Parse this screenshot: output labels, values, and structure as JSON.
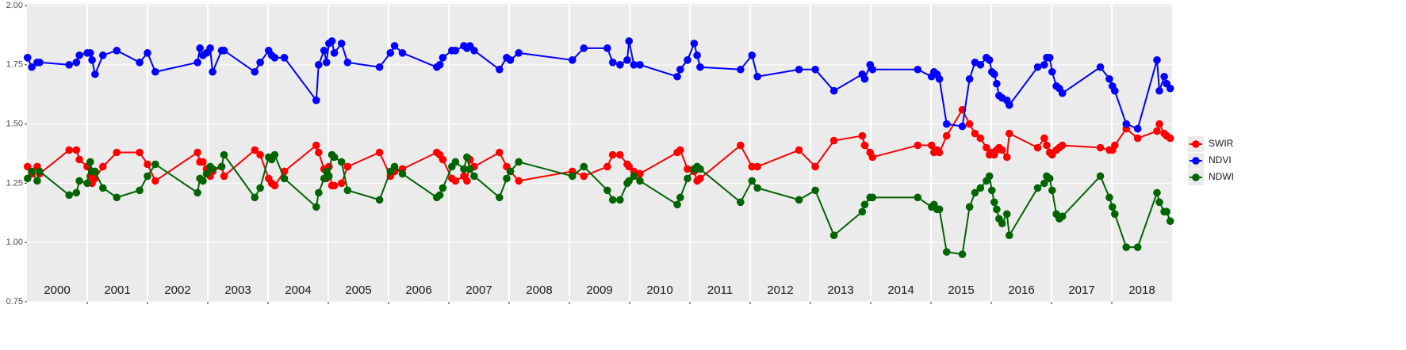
{
  "chart_data": {
    "type": "line",
    "x": [
      2000.01,
      2000.08,
      2000.17,
      2000.21,
      2000.7,
      2000.82,
      2000.87,
      2001.0,
      2001.05,
      2001.08,
      2001.13,
      2001.26,
      2001.49,
      2001.87,
      2002.0,
      2002.13,
      2002.83,
      2002.87,
      2002.92,
      2002.98,
      2003.04,
      2003.08,
      2003.23,
      2003.27,
      2003.78,
      2003.87,
      2004.01,
      2004.06,
      2004.11,
      2004.27,
      2004.8,
      2004.84,
      2004.93,
      2004.97,
      2005.01,
      2005.06,
      2005.1,
      2005.22,
      2005.32,
      2005.85,
      2006.03,
      2006.1,
      2006.23,
      2006.8,
      2006.85,
      2006.9,
      2007.05,
      2007.11,
      2007.25,
      2007.3,
      2007.35,
      2007.42,
      2007.84,
      2007.96,
      2008.02,
      2008.16,
      2009.05,
      2009.24,
      2009.63,
      2009.72,
      2009.84,
      2009.96,
      2009.99,
      2010.07,
      2010.17,
      2010.79,
      2010.84,
      2010.96,
      2011.07,
      2011.12,
      2011.17,
      2011.84,
      2012.03,
      2012.12,
      2012.81,
      2013.08,
      2013.39,
      2013.86,
      2013.9,
      2013.99,
      2014.03,
      2014.78,
      2015.01,
      2015.05,
      2015.1,
      2015.14,
      2015.26,
      2015.52,
      2015.64,
      2015.73,
      2015.82,
      2015.92,
      2015.97,
      2016.01,
      2016.05,
      2016.09,
      2016.13,
      2016.18,
      2016.26,
      2016.3,
      2016.77,
      2016.88,
      2016.92,
      2016.97,
      2017.01,
      2017.08,
      2017.13,
      2017.18,
      2017.81,
      2017.96,
      2018.01,
      2018.05,
      2018.24,
      2018.43,
      2018.75,
      2018.79,
      2018.87,
      2018.91,
      2018.97
    ],
    "series": [
      {
        "name": "SWIR",
        "color": "#ff0000",
        "values": [
          1.32,
          1.29,
          1.32,
          1.29,
          1.39,
          1.39,
          1.35,
          1.32,
          1.28,
          1.25,
          1.27,
          1.32,
          1.38,
          1.38,
          1.33,
          1.26,
          1.38,
          1.34,
          1.34,
          1.31,
          1.28,
          1.3,
          1.32,
          1.28,
          1.39,
          1.37,
          1.27,
          1.25,
          1.24,
          1.3,
          1.41,
          1.38,
          1.31,
          1.27,
          1.32,
          1.24,
          1.24,
          1.25,
          1.32,
          1.38,
          1.28,
          1.3,
          1.31,
          1.38,
          1.37,
          1.35,
          1.27,
          1.26,
          1.28,
          1.26,
          1.35,
          1.32,
          1.38,
          1.32,
          1.3,
          1.26,
          1.3,
          1.28,
          1.32,
          1.37,
          1.37,
          1.33,
          1.32,
          1.3,
          1.29,
          1.38,
          1.39,
          1.31,
          1.3,
          1.26,
          1.27,
          1.41,
          1.32,
          1.32,
          1.39,
          1.32,
          1.43,
          1.45,
          1.41,
          1.38,
          1.36,
          1.41,
          1.41,
          1.38,
          1.39,
          1.38,
          1.45,
          1.56,
          1.5,
          1.46,
          1.44,
          1.4,
          1.37,
          1.38,
          1.37,
          1.39,
          1.4,
          1.39,
          1.36,
          1.46,
          1.4,
          1.44,
          1.41,
          1.38,
          1.37,
          1.39,
          1.4,
          1.41,
          1.4,
          1.39,
          1.39,
          1.41,
          1.48,
          1.44,
          1.47,
          1.5,
          1.46,
          1.45,
          1.44
        ]
      },
      {
        "name": "NDVI",
        "color": "#0000ff",
        "values": [
          1.78,
          1.74,
          1.76,
          1.76,
          1.75,
          1.76,
          1.79,
          1.8,
          1.8,
          1.77,
          1.71,
          1.79,
          1.81,
          1.76,
          1.8,
          1.72,
          1.76,
          1.82,
          1.79,
          1.8,
          1.82,
          1.72,
          1.81,
          1.81,
          1.72,
          1.76,
          1.81,
          1.79,
          1.78,
          1.78,
          1.6,
          1.75,
          1.81,
          1.76,
          1.84,
          1.85,
          1.8,
          1.84,
          1.76,
          1.74,
          1.8,
          1.83,
          1.8,
          1.74,
          1.75,
          1.78,
          1.81,
          1.81,
          1.83,
          1.82,
          1.83,
          1.81,
          1.73,
          1.78,
          1.77,
          1.8,
          1.77,
          1.82,
          1.82,
          1.76,
          1.75,
          1.77,
          1.85,
          1.75,
          1.75,
          1.7,
          1.73,
          1.77,
          1.84,
          1.79,
          1.74,
          1.73,
          1.79,
          1.7,
          1.73,
          1.73,
          1.64,
          1.71,
          1.69,
          1.75,
          1.73,
          1.73,
          1.7,
          1.72,
          1.71,
          1.69,
          1.5,
          1.49,
          1.69,
          1.76,
          1.75,
          1.78,
          1.77,
          1.72,
          1.71,
          1.67,
          1.62,
          1.61,
          1.6,
          1.58,
          1.74,
          1.75,
          1.78,
          1.78,
          1.72,
          1.66,
          1.65,
          1.63,
          1.74,
          1.69,
          1.66,
          1.64,
          1.5,
          1.48,
          1.77,
          1.64,
          1.7,
          1.67,
          1.65
        ]
      },
      {
        "name": "NDWI",
        "color": "#006400",
        "values": [
          1.27,
          1.3,
          1.26,
          1.3,
          1.2,
          1.21,
          1.26,
          1.25,
          1.34,
          1.3,
          1.3,
          1.23,
          1.19,
          1.22,
          1.28,
          1.33,
          1.21,
          1.27,
          1.26,
          1.29,
          1.32,
          1.31,
          1.32,
          1.37,
          1.19,
          1.23,
          1.36,
          1.35,
          1.37,
          1.27,
          1.15,
          1.21,
          1.27,
          1.3,
          1.28,
          1.37,
          1.36,
          1.34,
          1.22,
          1.18,
          1.3,
          1.32,
          1.29,
          1.19,
          1.2,
          1.23,
          1.32,
          1.34,
          1.31,
          1.36,
          1.31,
          1.28,
          1.19,
          1.27,
          1.3,
          1.34,
          1.28,
          1.32,
          1.22,
          1.18,
          1.18,
          1.25,
          1.26,
          1.28,
          1.26,
          1.16,
          1.19,
          1.27,
          1.31,
          1.32,
          1.31,
          1.17,
          1.26,
          1.23,
          1.18,
          1.22,
          1.03,
          1.13,
          1.16,
          1.19,
          1.19,
          1.19,
          1.15,
          1.16,
          1.14,
          1.14,
          0.96,
          0.95,
          1.15,
          1.21,
          1.23,
          1.26,
          1.28,
          1.22,
          1.17,
          1.14,
          1.1,
          1.08,
          1.12,
          1.03,
          1.23,
          1.25,
          1.28,
          1.27,
          1.22,
          1.12,
          1.1,
          1.11,
          1.28,
          1.19,
          1.15,
          1.12,
          0.98,
          0.98,
          1.21,
          1.17,
          1.13,
          1.13,
          1.09
        ]
      }
    ],
    "xlim": [
      2000,
      2019
    ],
    "xticks": [
      2001,
      2002,
      2003,
      2004,
      2005,
      2006,
      2007,
      2008,
      2009,
      2010,
      2011,
      2012,
      2013,
      2014,
      2015,
      2016,
      2017,
      2018
    ],
    "year_labels": [
      "2000",
      "2001",
      "2002",
      "2003",
      "2004",
      "2005",
      "2006",
      "2007",
      "2008",
      "2009",
      "2010",
      "2011",
      "2012",
      "2013",
      "2014",
      "2015",
      "2016",
      "2017",
      "2018"
    ],
    "ylim": [
      0.75,
      2.0
    ],
    "yticks": [
      0.75,
      {
        "value": 1.0,
        "label": "1.00"
      },
      1.25,
      {
        "value": 1.5,
        "label": "1.50"
      },
      1.75,
      {
        "value": 2.0,
        "label": "2.00"
      }
    ],
    "grid": true,
    "legend": "right"
  }
}
